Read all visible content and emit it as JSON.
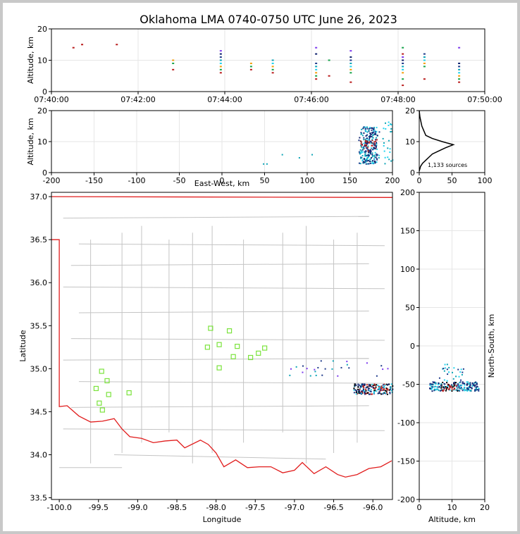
{
  "chart_data": [
    {
      "panel": "altitude-time",
      "type": "scatter",
      "title": "Oklahoma LMA 0740-0750 UTC June 26, 2023",
      "ylabel": "Altitude, km",
      "ylim": [
        0,
        20
      ],
      "yticks": [
        "0",
        "10",
        "20"
      ],
      "xticks": [
        "07:40:00",
        "07:42:00",
        "07:44:00",
        "07:46:00",
        "07:48:00",
        "07:50:00"
      ],
      "xlim_minutes": [
        0,
        10
      ],
      "bursts": [
        {
          "t": 2.8,
          "alts": [
            7,
            9,
            10
          ]
        },
        {
          "t": 3.9,
          "alts": [
            6,
            7,
            8,
            9,
            10,
            11,
            12,
            13
          ]
        },
        {
          "t": 4.6,
          "alts": [
            7,
            8,
            9
          ]
        },
        {
          "t": 5.1,
          "alts": [
            6,
            7,
            8,
            9,
            10
          ]
        },
        {
          "t": 6.1,
          "alts": [
            4,
            5,
            6,
            7,
            8,
            9,
            12,
            14
          ]
        },
        {
          "t": 6.4,
          "alts": [
            5,
            10
          ]
        },
        {
          "t": 6.9,
          "alts": [
            3,
            6,
            7,
            8,
            9,
            10,
            11,
            13
          ]
        },
        {
          "t": 8.1,
          "alts": [
            2,
            4,
            6,
            7,
            8,
            9,
            10,
            11,
            12,
            14
          ]
        },
        {
          "t": 8.6,
          "alts": [
            4,
            8,
            9,
            10,
            11,
            12
          ]
        },
        {
          "t": 9.4,
          "alts": [
            3,
            4,
            5,
            6,
            7,
            8,
            9,
            14
          ]
        },
        {
          "t": 0.5,
          "alts": [
            14
          ]
        },
        {
          "t": 0.7,
          "alts": [
            15
          ]
        },
        {
          "t": 1.5,
          "alts": [
            15
          ]
        }
      ]
    },
    {
      "panel": "altitude-eastwest",
      "type": "scatter",
      "xlabel": "East-West, km",
      "ylabel": "Altitude, km",
      "xlim": [
        -200,
        200
      ],
      "ylim": [
        0,
        20
      ],
      "xticks": [
        "-200",
        "-150",
        "-100",
        "-50",
        "0",
        "50",
        "100",
        "150",
        "200"
      ],
      "yticks": [
        "0",
        "10",
        "20"
      ],
      "cluster_center_x": 172,
      "cluster_alt_range": [
        3,
        15
      ],
      "outliers": [
        [
          70,
          6
        ],
        [
          90,
          5
        ],
        [
          105,
          6
        ],
        [
          48,
          3
        ],
        [
          52,
          3
        ]
      ]
    },
    {
      "panel": "sources-histogram",
      "type": "line",
      "annotation": "1,133 sources",
      "xlim": [
        0,
        100
      ],
      "ylim": [
        0,
        20
      ],
      "xticks": [
        "0",
        "50",
        "100"
      ],
      "yticks": [
        "0",
        "10",
        "20"
      ],
      "profile": [
        [
          0,
          0.5
        ],
        [
          2,
          2
        ],
        [
          5,
          3
        ],
        [
          10,
          4
        ],
        [
          15,
          5
        ],
        [
          20,
          6
        ],
        [
          30,
          7
        ],
        [
          40,
          8
        ],
        [
          52,
          9
        ],
        [
          35,
          10
        ],
        [
          20,
          11
        ],
        [
          10,
          12
        ],
        [
          8,
          13
        ],
        [
          6,
          14
        ],
        [
          4,
          15
        ],
        [
          3,
          16
        ],
        [
          2,
          17
        ],
        [
          1,
          18
        ],
        [
          0.5,
          19
        ],
        [
          0,
          20
        ]
      ]
    },
    {
      "panel": "map",
      "type": "scatter",
      "xlabel": "Longitude",
      "ylabel": "Latitude",
      "xlim": [
        -100.1,
        -95.75
      ],
      "ylim": [
        33.48,
        37.05
      ],
      "xticks": [
        "-100.0",
        "-99.5",
        "-99.0",
        "-98.5",
        "-98.0",
        "-97.5",
        "-97.0",
        "-96.5",
        "-96.0"
      ],
      "yticks": [
        "33.5",
        "34.0",
        "34.5",
        "35.0",
        "35.5",
        "36.0",
        "36.5",
        "37.0"
      ],
      "stations": [
        [
          -98.07,
          35.47
        ],
        [
          -97.83,
          35.44
        ],
        [
          -98.11,
          35.25
        ],
        [
          -97.96,
          35.28
        ],
        [
          -97.73,
          35.26
        ],
        [
          -97.38,
          35.24
        ],
        [
          -97.46,
          35.18
        ],
        [
          -97.78,
          35.14
        ],
        [
          -97.56,
          35.13
        ],
        [
          -97.96,
          35.01
        ],
        [
          -99.46,
          34.97
        ],
        [
          -99.39,
          34.86
        ],
        [
          -99.53,
          34.77
        ],
        [
          -99.37,
          34.7
        ],
        [
          -99.11,
          34.72
        ],
        [
          -99.49,
          34.6
        ],
        [
          -99.45,
          34.52
        ]
      ],
      "cluster_center": [
        -96.0,
        34.77
      ]
    },
    {
      "panel": "altitude-northsouth",
      "type": "scatter",
      "xlabel": "Altitude, km",
      "ylabel": "North-South, km",
      "xlim": [
        0,
        20
      ],
      "ylim": [
        -200,
        200
      ],
      "xticks": [
        "0",
        "10",
        "20"
      ],
      "yticks": [
        "-200",
        "-150",
        "-100",
        "-50",
        "0",
        "50",
        "100",
        "150",
        "200"
      ],
      "cluster_ns_range": [
        -60,
        -20
      ]
    }
  ]
}
